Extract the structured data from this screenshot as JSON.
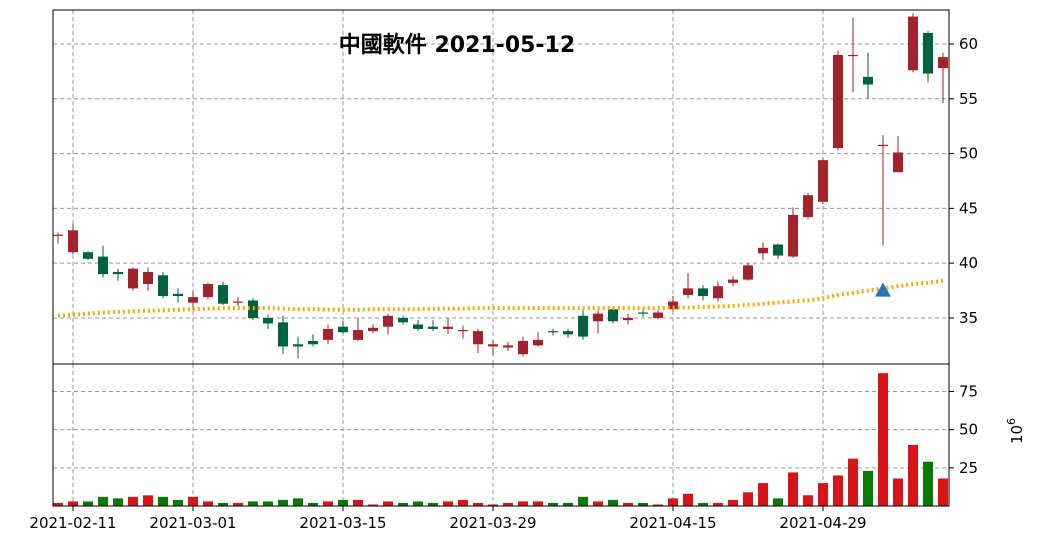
{
  "chart_data": {
    "type": "candlestick",
    "title": "中國軟件 2021-05-12",
    "dates": [
      "2021-02-10",
      "2021-02-11",
      "2021-02-18",
      "2021-02-19",
      "2021-02-22",
      "2021-02-23",
      "2021-02-24",
      "2021-02-25",
      "2021-02-26",
      "2021-03-01",
      "2021-03-02",
      "2021-03-03",
      "2021-03-04",
      "2021-03-05",
      "2021-03-08",
      "2021-03-09",
      "2021-03-10",
      "2021-03-11",
      "2021-03-12",
      "2021-03-15",
      "2021-03-16",
      "2021-03-17",
      "2021-03-18",
      "2021-03-19",
      "2021-03-22",
      "2021-03-23",
      "2021-03-24",
      "2021-03-25",
      "2021-03-26",
      "2021-03-29",
      "2021-03-30",
      "2021-03-31",
      "2021-04-01",
      "2021-04-02",
      "2021-04-06",
      "2021-04-07",
      "2021-04-08",
      "2021-04-09",
      "2021-04-12",
      "2021-04-13",
      "2021-04-14",
      "2021-04-15",
      "2021-04-16",
      "2021-04-19",
      "2021-04-20",
      "2021-04-21",
      "2021-04-22",
      "2021-04-23",
      "2021-04-26",
      "2021-04-27",
      "2021-04-28",
      "2021-04-29",
      "2021-04-30",
      "2021-05-06",
      "2021-05-07",
      "2021-05-10",
      "2021-05-11",
      "2021-05-12",
      "2021-05-13",
      "2021-05-14"
    ],
    "open": [
      42.6,
      41.0,
      41.0,
      40.6,
      39.2,
      37.7,
      38.1,
      38.9,
      37.2,
      36.4,
      36.9,
      38.0,
      36.4,
      36.6,
      35.0,
      34.6,
      32.6,
      32.9,
      33.0,
      34.2,
      33.0,
      33.8,
      34.2,
      35.0,
      34.4,
      34.2,
      34.0,
      33.8,
      32.6,
      32.4,
      32.3,
      31.7,
      32.5,
      33.8,
      33.8,
      35.2,
      34.7,
      35.8,
      34.8,
      35.5,
      35.0,
      35.8,
      37.1,
      37.7,
      36.8,
      38.2,
      38.5,
      40.9,
      41.7,
      40.6,
      44.2,
      45.6,
      50.5,
      59.0,
      57.0,
      50.7,
      48.3,
      57.6,
      61.0,
      57.8
    ],
    "close": [
      42.6,
      43.0,
      40.4,
      39.0,
      39.0,
      39.5,
      39.2,
      37.0,
      37.0,
      36.9,
      38.1,
      36.3,
      36.5,
      35.0,
      34.5,
      32.4,
      32.4,
      32.6,
      34.0,
      33.7,
      33.9,
      34.1,
      35.2,
      34.6,
      34.0,
      34.0,
      34.2,
      33.9,
      33.8,
      32.6,
      32.5,
      32.9,
      33.0,
      33.7,
      33.5,
      33.3,
      35.4,
      34.7,
      35.0,
      35.4,
      35.5,
      36.5,
      37.7,
      37.0,
      37.9,
      38.5,
      39.8,
      41.4,
      40.7,
      44.4,
      46.2,
      49.4,
      59.0,
      59.0,
      56.3,
      50.8,
      50.1,
      62.5,
      57.3,
      58.8
    ],
    "high": [
      42.8,
      43.6,
      41.1,
      41.6,
      39.5,
      39.6,
      39.6,
      39.2,
      37.7,
      37.5,
      38.2,
      38.3,
      36.9,
      36.8,
      35.3,
      35.2,
      33.3,
      33.5,
      34.4,
      34.7,
      35.0,
      34.4,
      35.4,
      35.2,
      34.8,
      34.8,
      35.0,
      34.3,
      34.0,
      33.0,
      32.8,
      33.3,
      33.7,
      34.0,
      34.0,
      35.7,
      35.7,
      36.0,
      35.4,
      35.8,
      35.7,
      37.0,
      39.1,
      38.0,
      38.3,
      38.8,
      40.0,
      41.9,
      41.8,
      45.1,
      46.4,
      49.6,
      59.4,
      62.4,
      59.2,
      51.7,
      51.6,
      62.8,
      61.2,
      59.2
    ],
    "low": [
      41.8,
      40.8,
      40.3,
      38.7,
      38.4,
      37.5,
      37.5,
      36.8,
      36.4,
      35.7,
      36.7,
      36.2,
      36.1,
      34.8,
      34.0,
      31.7,
      31.3,
      32.4,
      32.6,
      33.6,
      32.9,
      33.6,
      33.5,
      34.4,
      33.8,
      33.8,
      33.5,
      33.1,
      31.8,
      31.6,
      32.0,
      31.5,
      32.4,
      33.4,
      33.2,
      33.0,
      33.6,
      34.5,
      34.4,
      35.1,
      34.9,
      35.6,
      36.8,
      36.6,
      36.5,
      37.9,
      38.4,
      40.3,
      40.4,
      40.5,
      44.0,
      45.4,
      50.3,
      55.6,
      55.0,
      41.6,
      48.3,
      57.4,
      56.5,
      54.6
    ],
    "volume": [
      2,
      3,
      3,
      6,
      5,
      6,
      7,
      6,
      4,
      6,
      3,
      2,
      2,
      3,
      3,
      4,
      5,
      2,
      3,
      4,
      4,
      1,
      3,
      2,
      3,
      2,
      3,
      4,
      2,
      1,
      2,
      3,
      3,
      2,
      2,
      6,
      3,
      4,
      2,
      2,
      1,
      5,
      8,
      2,
      2,
      4,
      9,
      15,
      5,
      22,
      7,
      15,
      20,
      31,
      23,
      87,
      18,
      40,
      29,
      18
    ],
    "ma": [
      35.2,
      35.3,
      35.4,
      35.5,
      35.55,
      35.6,
      35.65,
      35.7,
      35.75,
      35.8,
      35.85,
      35.9,
      35.9,
      35.9,
      35.9,
      35.85,
      35.8,
      35.8,
      35.75,
      35.75,
      35.75,
      35.8,
      35.8,
      35.8,
      35.8,
      35.85,
      35.85,
      35.85,
      35.9,
      35.9,
      35.9,
      35.9,
      35.9,
      35.9,
      35.9,
      35.9,
      35.9,
      35.9,
      35.9,
      35.9,
      35.9,
      35.95,
      35.95,
      36.0,
      36.05,
      36.1,
      36.2,
      36.3,
      36.4,
      36.5,
      36.6,
      36.8,
      37.1,
      37.3,
      37.5,
      37.7,
      37.9,
      38.1,
      38.2,
      38.4
    ],
    "signal": [
      {
        "date": "2021-05-10",
        "value": 37.5,
        "marker": "triangle-up"
      }
    ],
    "x_tick_labels": [
      "2021-02-11",
      "2021-03-01",
      "2021-03-15",
      "2021-03-29",
      "2021-04-15",
      "2021-04-29"
    ],
    "price_ticks": [
      35,
      40,
      45,
      50,
      55,
      60
    ],
    "price_ylim": [
      30.8,
      63.1
    ],
    "volume_ticks": [
      25,
      50,
      75
    ],
    "volume_ylim": [
      0,
      93
    ],
    "volume_unit": "10^6",
    "volume_unit_base": "10",
    "volume_unit_exp": "6",
    "grid": true,
    "colors": {
      "up": "#a3222b",
      "down": "#006340",
      "vol_up": "#d71418",
      "vol_down": "#087a05",
      "ma": "#ffa500",
      "signal": "#1f77b4",
      "grid": "#999999"
    }
  }
}
